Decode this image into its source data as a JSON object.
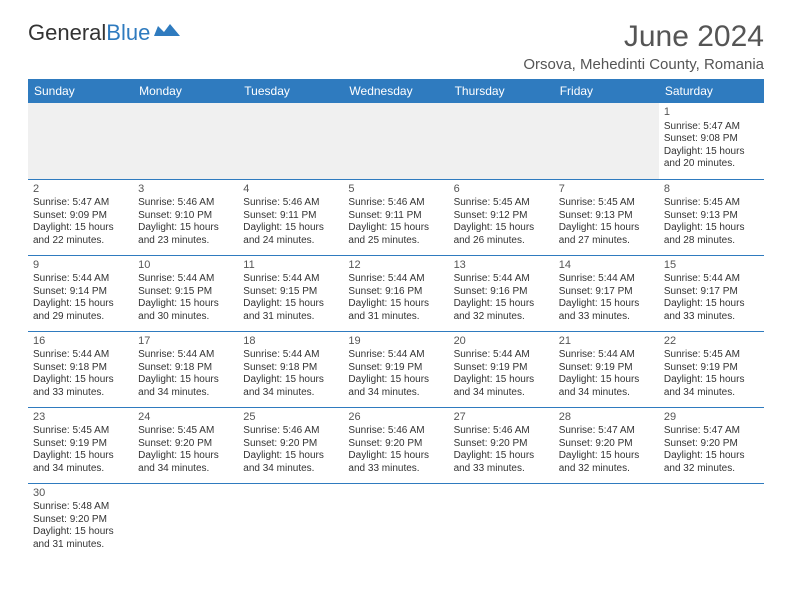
{
  "logo": {
    "text1": "General",
    "text2": "Blue"
  },
  "title": "June 2024",
  "location": "Orsova, Mehedinti County, Romania",
  "dayHeaders": [
    "Sunday",
    "Monday",
    "Tuesday",
    "Wednesday",
    "Thursday",
    "Friday",
    "Saturday"
  ],
  "colors": {
    "headerBg": "#2f7bbf",
    "headerText": "#ffffff",
    "inactiveBg": "#f0f0f0",
    "border": "#2f7bbf"
  },
  "weeks": [
    [
      {
        "inactive": true
      },
      {
        "inactive": true
      },
      {
        "inactive": true
      },
      {
        "inactive": true
      },
      {
        "inactive": true
      },
      {
        "inactive": true
      },
      {
        "day": "1",
        "sunrise": "Sunrise: 5:47 AM",
        "sunset": "Sunset: 9:08 PM",
        "daylight1": "Daylight: 15 hours",
        "daylight2": "and 20 minutes."
      }
    ],
    [
      {
        "day": "2",
        "sunrise": "Sunrise: 5:47 AM",
        "sunset": "Sunset: 9:09 PM",
        "daylight1": "Daylight: 15 hours",
        "daylight2": "and 22 minutes."
      },
      {
        "day": "3",
        "sunrise": "Sunrise: 5:46 AM",
        "sunset": "Sunset: 9:10 PM",
        "daylight1": "Daylight: 15 hours",
        "daylight2": "and 23 minutes."
      },
      {
        "day": "4",
        "sunrise": "Sunrise: 5:46 AM",
        "sunset": "Sunset: 9:11 PM",
        "daylight1": "Daylight: 15 hours",
        "daylight2": "and 24 minutes."
      },
      {
        "day": "5",
        "sunrise": "Sunrise: 5:46 AM",
        "sunset": "Sunset: 9:11 PM",
        "daylight1": "Daylight: 15 hours",
        "daylight2": "and 25 minutes."
      },
      {
        "day": "6",
        "sunrise": "Sunrise: 5:45 AM",
        "sunset": "Sunset: 9:12 PM",
        "daylight1": "Daylight: 15 hours",
        "daylight2": "and 26 minutes."
      },
      {
        "day": "7",
        "sunrise": "Sunrise: 5:45 AM",
        "sunset": "Sunset: 9:13 PM",
        "daylight1": "Daylight: 15 hours",
        "daylight2": "and 27 minutes."
      },
      {
        "day": "8",
        "sunrise": "Sunrise: 5:45 AM",
        "sunset": "Sunset: 9:13 PM",
        "daylight1": "Daylight: 15 hours",
        "daylight2": "and 28 minutes."
      }
    ],
    [
      {
        "day": "9",
        "sunrise": "Sunrise: 5:44 AM",
        "sunset": "Sunset: 9:14 PM",
        "daylight1": "Daylight: 15 hours",
        "daylight2": "and 29 minutes."
      },
      {
        "day": "10",
        "sunrise": "Sunrise: 5:44 AM",
        "sunset": "Sunset: 9:15 PM",
        "daylight1": "Daylight: 15 hours",
        "daylight2": "and 30 minutes."
      },
      {
        "day": "11",
        "sunrise": "Sunrise: 5:44 AM",
        "sunset": "Sunset: 9:15 PM",
        "daylight1": "Daylight: 15 hours",
        "daylight2": "and 31 minutes."
      },
      {
        "day": "12",
        "sunrise": "Sunrise: 5:44 AM",
        "sunset": "Sunset: 9:16 PM",
        "daylight1": "Daylight: 15 hours",
        "daylight2": "and 31 minutes."
      },
      {
        "day": "13",
        "sunrise": "Sunrise: 5:44 AM",
        "sunset": "Sunset: 9:16 PM",
        "daylight1": "Daylight: 15 hours",
        "daylight2": "and 32 minutes."
      },
      {
        "day": "14",
        "sunrise": "Sunrise: 5:44 AM",
        "sunset": "Sunset: 9:17 PM",
        "daylight1": "Daylight: 15 hours",
        "daylight2": "and 33 minutes."
      },
      {
        "day": "15",
        "sunrise": "Sunrise: 5:44 AM",
        "sunset": "Sunset: 9:17 PM",
        "daylight1": "Daylight: 15 hours",
        "daylight2": "and 33 minutes."
      }
    ],
    [
      {
        "day": "16",
        "sunrise": "Sunrise: 5:44 AM",
        "sunset": "Sunset: 9:18 PM",
        "daylight1": "Daylight: 15 hours",
        "daylight2": "and 33 minutes."
      },
      {
        "day": "17",
        "sunrise": "Sunrise: 5:44 AM",
        "sunset": "Sunset: 9:18 PM",
        "daylight1": "Daylight: 15 hours",
        "daylight2": "and 34 minutes."
      },
      {
        "day": "18",
        "sunrise": "Sunrise: 5:44 AM",
        "sunset": "Sunset: 9:18 PM",
        "daylight1": "Daylight: 15 hours",
        "daylight2": "and 34 minutes."
      },
      {
        "day": "19",
        "sunrise": "Sunrise: 5:44 AM",
        "sunset": "Sunset: 9:19 PM",
        "daylight1": "Daylight: 15 hours",
        "daylight2": "and 34 minutes."
      },
      {
        "day": "20",
        "sunrise": "Sunrise: 5:44 AM",
        "sunset": "Sunset: 9:19 PM",
        "daylight1": "Daylight: 15 hours",
        "daylight2": "and 34 minutes."
      },
      {
        "day": "21",
        "sunrise": "Sunrise: 5:44 AM",
        "sunset": "Sunset: 9:19 PM",
        "daylight1": "Daylight: 15 hours",
        "daylight2": "and 34 minutes."
      },
      {
        "day": "22",
        "sunrise": "Sunrise: 5:45 AM",
        "sunset": "Sunset: 9:19 PM",
        "daylight1": "Daylight: 15 hours",
        "daylight2": "and 34 minutes."
      }
    ],
    [
      {
        "day": "23",
        "sunrise": "Sunrise: 5:45 AM",
        "sunset": "Sunset: 9:19 PM",
        "daylight1": "Daylight: 15 hours",
        "daylight2": "and 34 minutes."
      },
      {
        "day": "24",
        "sunrise": "Sunrise: 5:45 AM",
        "sunset": "Sunset: 9:20 PM",
        "daylight1": "Daylight: 15 hours",
        "daylight2": "and 34 minutes."
      },
      {
        "day": "25",
        "sunrise": "Sunrise: 5:46 AM",
        "sunset": "Sunset: 9:20 PM",
        "daylight1": "Daylight: 15 hours",
        "daylight2": "and 34 minutes."
      },
      {
        "day": "26",
        "sunrise": "Sunrise: 5:46 AM",
        "sunset": "Sunset: 9:20 PM",
        "daylight1": "Daylight: 15 hours",
        "daylight2": "and 33 minutes."
      },
      {
        "day": "27",
        "sunrise": "Sunrise: 5:46 AM",
        "sunset": "Sunset: 9:20 PM",
        "daylight1": "Daylight: 15 hours",
        "daylight2": "and 33 minutes."
      },
      {
        "day": "28",
        "sunrise": "Sunrise: 5:47 AM",
        "sunset": "Sunset: 9:20 PM",
        "daylight1": "Daylight: 15 hours",
        "daylight2": "and 32 minutes."
      },
      {
        "day": "29",
        "sunrise": "Sunrise: 5:47 AM",
        "sunset": "Sunset: 9:20 PM",
        "daylight1": "Daylight: 15 hours",
        "daylight2": "and 32 minutes."
      }
    ],
    [
      {
        "day": "30",
        "sunrise": "Sunrise: 5:48 AM",
        "sunset": "Sunset: 9:20 PM",
        "daylight1": "Daylight: 15 hours",
        "daylight2": "and 31 minutes."
      },
      {
        "inactive": false,
        "empty": true
      },
      {
        "inactive": false,
        "empty": true
      },
      {
        "inactive": false,
        "empty": true
      },
      {
        "inactive": false,
        "empty": true
      },
      {
        "inactive": false,
        "empty": true
      },
      {
        "inactive": false,
        "empty": true
      }
    ]
  ]
}
